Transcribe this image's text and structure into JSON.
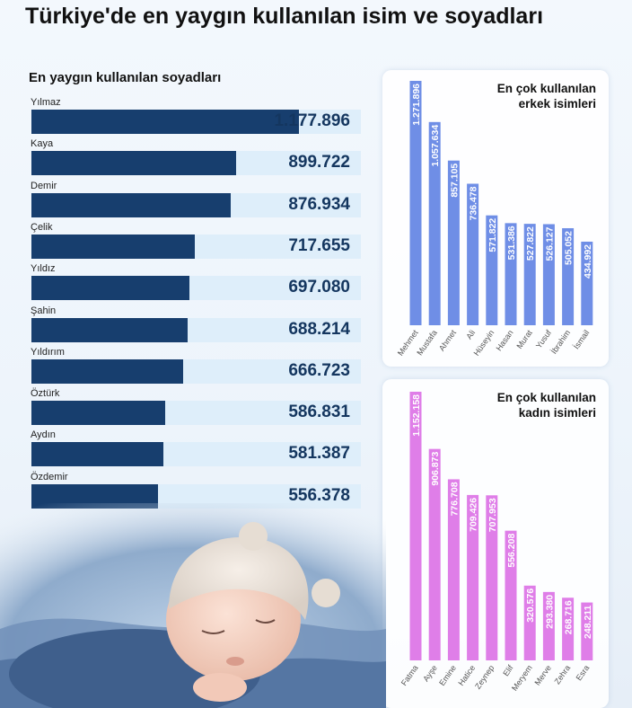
{
  "title": "Türkiye'de en yaygın kullanılan isim ve soyadları",
  "chart_data": [
    {
      "type": "bar",
      "orientation": "horizontal",
      "title": "En yaygın kullanılan soyadları",
      "categories": [
        "Yılmaz",
        "Kaya",
        "Demir",
        "Çelik",
        "Yıldız",
        "Şahin",
        "Yıldırım",
        "Öztürk",
        "Aydın",
        "Özdemir"
      ],
      "values": [
        1177896,
        899722,
        876934,
        717655,
        697080,
        688214,
        666723,
        586831,
        581387,
        556378
      ],
      "value_labels": [
        "1.177.896",
        "899.722",
        "876.934",
        "717.655",
        "697.080",
        "688.214",
        "666.723",
        "586.831",
        "581.387",
        "556.378"
      ],
      "xlim": [
        0,
        1450000
      ],
      "bar_color": "#173e6e",
      "track_color": "#deeefa"
    },
    {
      "type": "bar",
      "title": "En çok kullanılan erkek isimleri",
      "categories": [
        "Mehmet",
        "Mustafa",
        "Ahmet",
        "Ali",
        "Hüseyin",
        "Hasan",
        "Murat",
        "Yusuf",
        "İbrahim",
        "İsmail"
      ],
      "values": [
        1271896,
        1057634,
        857105,
        736478,
        571822,
        531386,
        527822,
        526127,
        505052,
        434992
      ],
      "value_labels": [
        "1.271.896",
        "1.057.634",
        "857.105",
        "736.478",
        "571.822",
        "531.386",
        "527.822",
        "526.127",
        "505.052",
        "434.992"
      ],
      "ylim": [
        0,
        1271896
      ],
      "bar_color": "#6f8ee6"
    },
    {
      "type": "bar",
      "title": "En çok kullanılan kadın isimleri",
      "categories": [
        "Fatma",
        "Ayşe",
        "Emine",
        "Hatice",
        "Zeynep",
        "Elif",
        "Meryem",
        "Merve",
        "Zehra",
        "Esra"
      ],
      "values": [
        1152158,
        906873,
        776708,
        709426,
        707953,
        556208,
        320576,
        293380,
        268716,
        248211
      ],
      "value_labels": [
        "1.152.158",
        "906.873",
        "776.708",
        "709.426",
        "707.953",
        "556.208",
        "320.576",
        "293.380",
        "268.716",
        "248.211"
      ],
      "ylim": [
        0,
        1152158
      ],
      "bar_color": "#df7ee8"
    }
  ],
  "colors": {
    "surname_bar": "#173e6e",
    "surname_value": "#14365f",
    "men_bar": "#6f8ee6",
    "women_bar": "#df7ee8"
  }
}
